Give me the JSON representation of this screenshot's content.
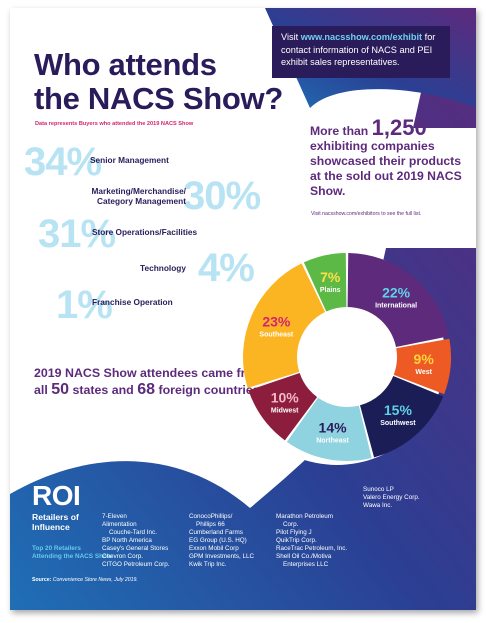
{
  "visit": {
    "prefix": "Visit ",
    "url": "www.nacsshow.com/exhibit",
    "rest": " for contact information of NACS and PEI exhibit sales representatives."
  },
  "title": {
    "line1": "Who attends",
    "line2": "the NACS Show?"
  },
  "subnote": "Data represents Buyers who attended the 2019 NACS Show",
  "attendee_stats": [
    {
      "pct": "34%",
      "label": "Senior Management"
    },
    {
      "pct": "30%",
      "label": "Marketing/Merchandise/ Category Management"
    },
    {
      "pct": "31%",
      "label": "Store Operations/Facilities"
    },
    {
      "pct": "4%",
      "label": "Technology"
    },
    {
      "pct": "1%",
      "label": "Franchise Operation"
    }
  ],
  "exhibitors": {
    "pre": "More than ",
    "count": "1,250",
    "text": " exhibiting companies showcased their products at the sold out 2019 NACS Show.",
    "note": "Visit nacsshow.com/exhibitors to see the full list."
  },
  "states": {
    "pre": "2019 NACS Show attendees came from all ",
    "num_states": "50",
    "mid": " states and ",
    "num_countries": "68",
    "post": " foreign countries."
  },
  "chart_data": {
    "type": "pie",
    "variant": "donut",
    "title": "",
    "slices": [
      {
        "label": "International",
        "value": 22,
        "pct_label": "22%",
        "color": "#5d2a7c",
        "pct_color": "#5fd0e8"
      },
      {
        "label": "West",
        "value": 9,
        "pct_label": "9%",
        "color": "#ee5a24",
        "pct_color": "#ffd43a"
      },
      {
        "label": "Southwest",
        "value": 15,
        "pct_label": "15%",
        "color": "#1b1d57",
        "pct_color": "#5fd0e8"
      },
      {
        "label": "Northeast",
        "value": 14,
        "pct_label": "14%",
        "color": "#8fd3e0",
        "pct_color": "#2a1c5a"
      },
      {
        "label": "Midwest",
        "value": 10,
        "pct_label": "10%",
        "color": "#8c1d3c",
        "pct_color": "#f3b8c8"
      },
      {
        "label": "Southeast",
        "value": 23,
        "pct_label": "23%",
        "color": "#fbb523",
        "pct_color": "#d4246e"
      },
      {
        "label": "Plains",
        "value": 7,
        "pct_label": "7%",
        "color": "#5cb946",
        "pct_color": "#ffe046"
      }
    ]
  },
  "roi": {
    "logo": "ROI",
    "sub": "Retailers of Influence",
    "top": "Top 20 Retailers Attending the NACS Show",
    "columns": [
      [
        "7-Eleven",
        "Alimentation",
        "  Couche-Tard Inc.",
        "BP North America",
        "Casey's General Stores",
        "Chevron Corp.",
        "CITGO Petroleum Corp."
      ],
      [
        "ConocoPhillips/",
        "  Phillips 66",
        "Cumberland Farms",
        "EG Group (U.S. HQ)",
        "Exxon Mobil Corp",
        "GPM Investments, LLC",
        "Kwik Trip Inc."
      ],
      [
        "Marathon Petroleum",
        "  Corp.",
        "Pilot Flying J",
        "QuikTrip Corp.",
        "RaceTrac Petroleum, Inc.",
        "Shell Oil Co./Motiva",
        "  Enterprises LLC"
      ],
      [
        "Sunoco LP",
        "Valero Energy Corp.",
        "Wawa Inc."
      ]
    ],
    "source_label": "Source:",
    "source_text": "Convenience Store News, July 2019."
  },
  "colors": {
    "navy": "#2a1c5a",
    "purple": "#5d2a7c",
    "light_blue": "#b7e3f3",
    "pink": "#d4246e"
  }
}
